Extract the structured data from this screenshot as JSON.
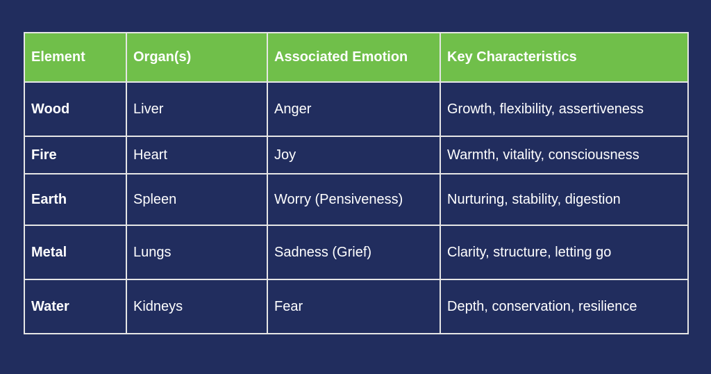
{
  "colors": {
    "background": "#212d5e",
    "header": "#70bf4a",
    "border": "#e6e6e6",
    "text": "#ffffff"
  },
  "table": {
    "headers": [
      "Element",
      "Organ(s)",
      "Associated Emotion",
      "Key Characteristics"
    ],
    "rows": [
      [
        "Wood",
        "Liver",
        "Anger",
        "Growth, flexibility, assertiveness"
      ],
      [
        "Fire",
        "Heart",
        "Joy",
        "Warmth, vitality, consciousness"
      ],
      [
        "Earth",
        "Spleen",
        "Worry (Pensiveness)",
        "Nurturing, stability, digestion"
      ],
      [
        "Metal",
        "Lungs",
        "Sadness (Grief)",
        "Clarity, structure, letting go"
      ],
      [
        "Water",
        "Kidneys",
        "Fear",
        "Depth, conservation, resilience"
      ]
    ]
  }
}
